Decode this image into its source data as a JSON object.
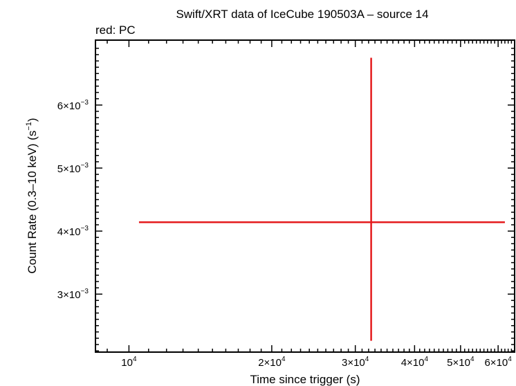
{
  "chart_data": {
    "type": "scatter",
    "title": "Swift/XRT data of IceCube 190503A – source 14",
    "subtitle": "red: PC",
    "xlabel": "Time since trigger (s)",
    "ylabel_main": "Count Rate (0.3–10 keV) (s",
    "ylabel_sup": "−1",
    "ylabel_end": ")",
    "x_scale": "log",
    "xlim": [
      8500,
      65000
    ],
    "ylim": [
      0.00208,
      0.00703
    ],
    "x_ticks": [
      {
        "value": 10000,
        "mant": "10",
        "exp": "4"
      },
      {
        "value": 20000,
        "mant": "2×10",
        "exp": "4"
      },
      {
        "value": 30000,
        "mant": "3×10",
        "exp": "4"
      },
      {
        "value": 40000,
        "mant": "4×10",
        "exp": "4"
      },
      {
        "value": 50000,
        "mant": "5×10",
        "exp": "4"
      },
      {
        "value": 60000,
        "mant": "6×10",
        "exp": "4"
      }
    ],
    "y_ticks": [
      {
        "value": 0.003,
        "mant": "3×10",
        "exp": "−3"
      },
      {
        "value": 0.004,
        "mant": "4×10",
        "exp": "−3"
      },
      {
        "value": 0.005,
        "mant": "5×10",
        "exp": "−3"
      },
      {
        "value": 0.006,
        "mant": "6×10",
        "exp": "−3"
      }
    ],
    "series": [
      {
        "name": "PC",
        "color": "#e41a1c",
        "points": [
          {
            "x": 32400,
            "x_lo": 10500,
            "x_hi": 62000,
            "y": 0.00414,
            "y_lo": 0.00226,
            "y_hi": 0.00675
          }
        ]
      }
    ],
    "grid": false,
    "legend": "none"
  }
}
